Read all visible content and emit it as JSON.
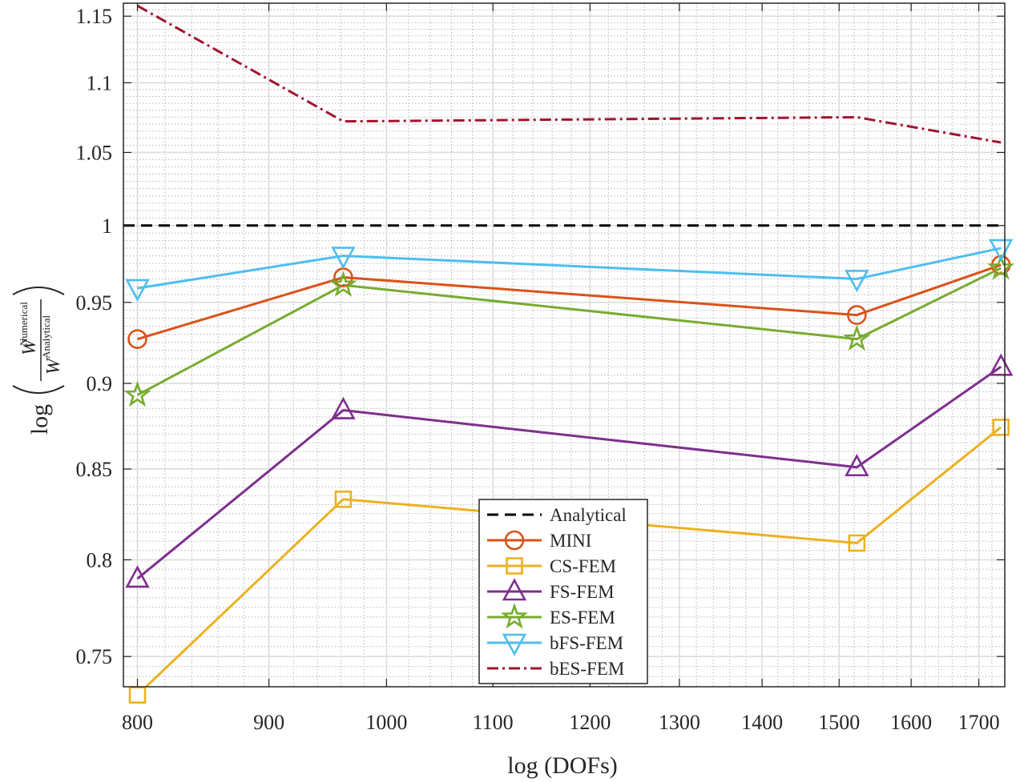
{
  "chart_data": {
    "type": "line",
    "title": "",
    "xlabel": "log (DOFs)",
    "ylabel": {
      "prefix": "log",
      "numerator": "W",
      "numerator_sup": "Numerical",
      "denominator": "W",
      "denominator_sup": "Analytical"
    },
    "xscale": "log",
    "yscale": "log",
    "xlim": [
      790,
      1740
    ],
    "ylim": [
      0.735,
      1.16
    ],
    "xticks": [
      800,
      900,
      1000,
      1100,
      1200,
      1300,
      1400,
      1500,
      1600,
      1700
    ],
    "xtick_labels": [
      "800",
      "900",
      "1000",
      "1100",
      "1200",
      "1300",
      "1400",
      "1500",
      "1600",
      "1700"
    ],
    "yticks": [
      0.75,
      0.8,
      0.85,
      0.9,
      0.95,
      1,
      1.05,
      1.1,
      1.15
    ],
    "ytick_labels": [
      "0.75",
      "0.8",
      "0.85",
      "0.9",
      "0.95",
      "1",
      "1.05",
      "1.1",
      "1.15"
    ],
    "grid": true,
    "minor_grid": true,
    "legend_position": "bottom-center",
    "x": [
      800,
      962,
      1524,
      1734
    ],
    "series": [
      {
        "name": "Analytical",
        "values": [
          1.0,
          1.0,
          1.0,
          1.0
        ],
        "color": "#000000",
        "marker": "none",
        "dash": "dashed",
        "extend": true
      },
      {
        "name": "MINI",
        "values": [
          0.927,
          0.966,
          0.942,
          0.974
        ],
        "color": "#D95319",
        "marker": "circle",
        "dash": "solid"
      },
      {
        "name": "CS-FEM",
        "values": [
          0.731,
          0.833,
          0.809,
          0.874
        ],
        "color": "#EDB120",
        "marker": "square",
        "dash": "solid"
      },
      {
        "name": "FS-FEM",
        "values": [
          0.79,
          0.884,
          0.851,
          0.91
        ],
        "color": "#7E2F8E",
        "marker": "triangle-up",
        "dash": "solid"
      },
      {
        "name": "ES-FEM",
        "values": [
          0.893,
          0.961,
          0.927,
          0.972
        ],
        "color": "#77AC30",
        "marker": "star",
        "dash": "solid"
      },
      {
        "name": "bFS-FEM",
        "values": [
          0.959,
          0.98,
          0.965,
          0.985
        ],
        "color": "#4DBEEE",
        "marker": "triangle-down",
        "dash": "solid"
      },
      {
        "name": "bES-FEM",
        "values": [
          1.158,
          1.072,
          1.075,
          1.057
        ],
        "color": "#A2142F",
        "marker": "none",
        "dash": "dashdot"
      }
    ]
  }
}
